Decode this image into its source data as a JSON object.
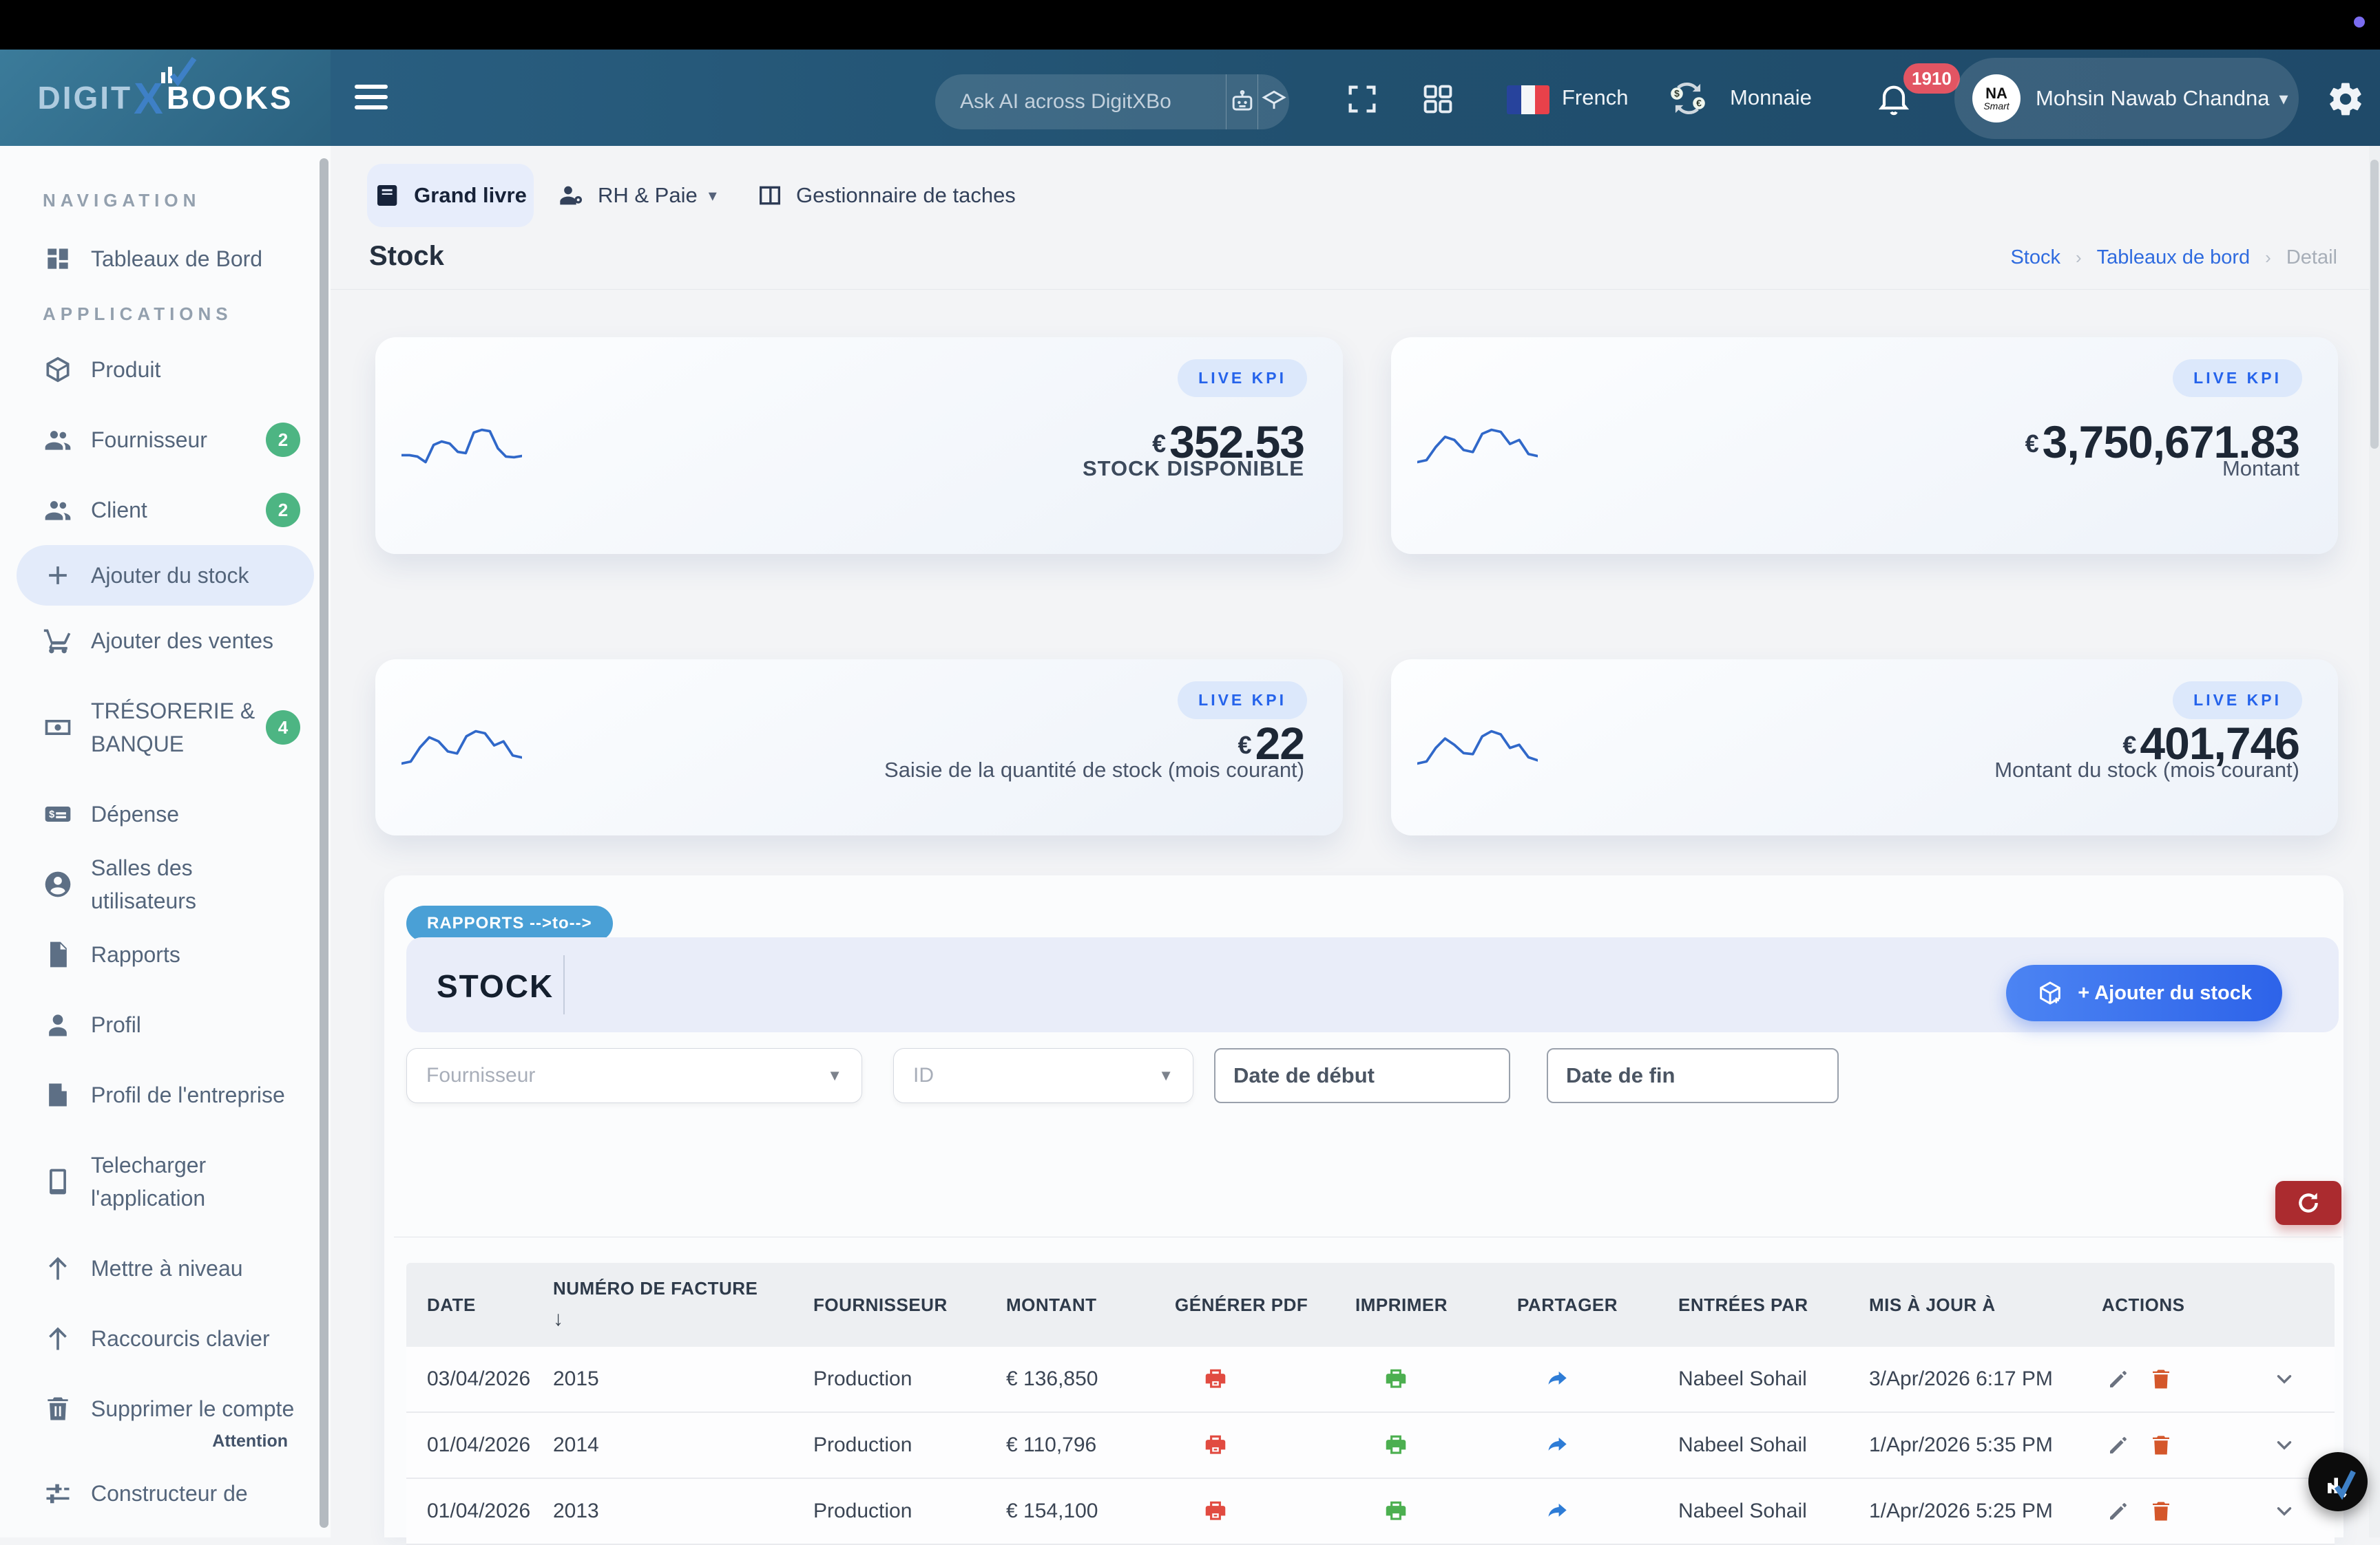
{
  "topbar": {
    "dot_color": "#7b6cf0"
  },
  "navbar": {
    "logo": {
      "digit": "DIGIT",
      "x": "X",
      "books": "BOOKS"
    },
    "search": {
      "placeholder": "Ask AI across DigitXBo"
    },
    "language": {
      "label": "French"
    },
    "currency": {
      "label": "Monnaie"
    },
    "notifications": {
      "count": "1910"
    },
    "user": {
      "name": "Mohsin Nawab Chandna",
      "avatar_line1": "NA",
      "avatar_line2": "Smart"
    }
  },
  "sidebar": {
    "section_navigation": "NAVIGATION",
    "section_applications": "APPLICATIONS",
    "nav_items": [
      {
        "label": "Tableaux de Bord"
      }
    ],
    "app_items": [
      {
        "label": "Produit"
      },
      {
        "label": "Fournisseur",
        "badge": "2"
      },
      {
        "label": "Client",
        "badge": "2"
      },
      {
        "label": "Ajouter du stock",
        "active": true
      },
      {
        "label": "Ajouter des ventes"
      },
      {
        "label": "TRÉSORERIE & BANQUE",
        "badge": "4"
      },
      {
        "label": "Dépense"
      },
      {
        "label": "Salles des utilisateurs"
      },
      {
        "label": "Rapports"
      },
      {
        "label": "Profil"
      },
      {
        "label": "Profil de l'entreprise"
      },
      {
        "label": "Telecharger l'application"
      },
      {
        "label": "Mettre à niveau"
      },
      {
        "label": "Raccourcis clavier"
      },
      {
        "label": "Supprimer le compte",
        "note": "Attention"
      },
      {
        "label": "Constructeur de"
      }
    ]
  },
  "tabs": [
    {
      "label": "Grand livre"
    },
    {
      "label": "RH & Paie"
    },
    {
      "label": "Gestionnaire de taches"
    }
  ],
  "page": {
    "title": "Stock",
    "breadcrumb": [
      {
        "label": "Stock"
      },
      {
        "label": "Tableaux de bord"
      },
      {
        "label": "Detail"
      }
    ]
  },
  "kpi_cards": [
    {
      "badge": "LIVE KPI",
      "currency": "€",
      "value": "352.53",
      "label": "STOCK DISPONIBLE",
      "sparkline": [
        35,
        35,
        33,
        25,
        50,
        55,
        52,
        40,
        38,
        68,
        72,
        70,
        45,
        33,
        32,
        34
      ]
    },
    {
      "badge": "LIVE KPI",
      "currency": "€",
      "value": "3,750,671.83",
      "label": "Montant",
      "sparkline": [
        30,
        32,
        45,
        55,
        52,
        42,
        40,
        58,
        62,
        60,
        48,
        52,
        38,
        36
      ]
    },
    {
      "badge": "LIVE KPI",
      "currency": "€",
      "value": "22",
      "label": "Saisie de la quantité de stock (mois courant)",
      "sparkline": [
        30,
        32,
        46,
        56,
        52,
        42,
        40,
        57,
        62,
        60,
        48,
        52,
        38,
        36
      ]
    },
    {
      "badge": "LIVE KPI",
      "currency": "€",
      "value": "401,746",
      "label": "Montant du stock (mois courant)",
      "sparkline": [
        32,
        34,
        47,
        56,
        50,
        42,
        41,
        58,
        63,
        60,
        47,
        50,
        38,
        35
      ]
    }
  ],
  "reports": {
    "ribbon": "RAPPORTS -->to-->",
    "panel_title": "STOCK",
    "add_button": "+ Ajouter du stock"
  },
  "filters": {
    "fournisseur_placeholder": "Fournisseur",
    "id_placeholder": "ID",
    "date_start_placeholder": "Date de début",
    "date_end_placeholder": "Date de fin"
  },
  "table": {
    "columns": [
      "DATE",
      "NUMÉRO DE FACTURE",
      "FOURNISSEUR",
      "MONTANT",
      "GÉNÉRER PDF",
      "IMPRIMER",
      "PARTAGER",
      "ENTRÉES PAR",
      "MIS À JOUR À",
      "ACTIONS"
    ],
    "sort_arrow": "↓",
    "rows": [
      {
        "date": "03/04/2026",
        "invoice": "2015",
        "supplier": "Production",
        "amount": "€ 136,850",
        "entered_by": "Nabeel Sohail",
        "updated_at": "3/Apr/2026 6:17 PM"
      },
      {
        "date": "01/04/2026",
        "invoice": "2014",
        "supplier": "Production",
        "amount": "€ 110,796",
        "entered_by": "Nabeel Sohail",
        "updated_at": "1/Apr/2026 5:35 PM"
      },
      {
        "date": "01/04/2026",
        "invoice": "2013",
        "supplier": "Production",
        "amount": "€ 154,100",
        "entered_by": "Nabeel Sohail",
        "updated_at": "1/Apr/2026 5:25 PM"
      }
    ]
  },
  "colors": {
    "accent_blue": "#2563eb",
    "green_badge": "#4db583",
    "red_badge": "#e25563",
    "refresh_red": "#ab2b2f",
    "pdf_red": "#e14b41",
    "printer_green": "#4caf50",
    "share_blue": "#2e7cd6",
    "trash_orange": "#d4572b",
    "spark_blue": "#3068c9"
  }
}
